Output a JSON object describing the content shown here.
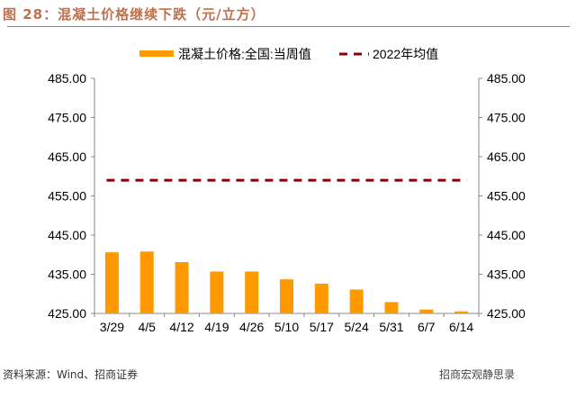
{
  "figure_title": "图 28：混凝土价格继续下跌（元/立方）",
  "source": "资料来源：Wind、招商证券",
  "watermark": "招商宏观静思录",
  "chart_data": {
    "type": "bar",
    "title": "",
    "xlabel": "",
    "ylabel": "",
    "categories": [
      "3/29",
      "4/5",
      "4/12",
      "4/19",
      "4/26",
      "5/10",
      "5/17",
      "5/24",
      "5/31",
      "6/7",
      "6/14"
    ],
    "series": [
      {
        "name": "混凝土价格:全国:当周值",
        "type": "bar",
        "color": "#FF9900",
        "values": [
          440.6,
          440.8,
          438.1,
          435.7,
          435.7,
          433.7,
          432.6,
          431.1,
          427.9,
          426.0,
          425.5
        ]
      },
      {
        "name": "2022年均值",
        "type": "line",
        "style": "dashed",
        "color": "#8B0000",
        "values": [
          459.0,
          459.0,
          459.0,
          459.0,
          459.0,
          459.0,
          459.0,
          459.0,
          459.0,
          459.0,
          459.0
        ]
      }
    ],
    "ylim": [
      425,
      485
    ],
    "yticks": [
      "425.00",
      "435.00",
      "445.00",
      "455.00",
      "465.00",
      "475.00",
      "485.00"
    ],
    "secondary_yticks": [
      "425.00",
      "435.00",
      "445.00",
      "455.00",
      "465.00",
      "475.00",
      "485.00"
    ],
    "grid": false,
    "legend": "top"
  }
}
